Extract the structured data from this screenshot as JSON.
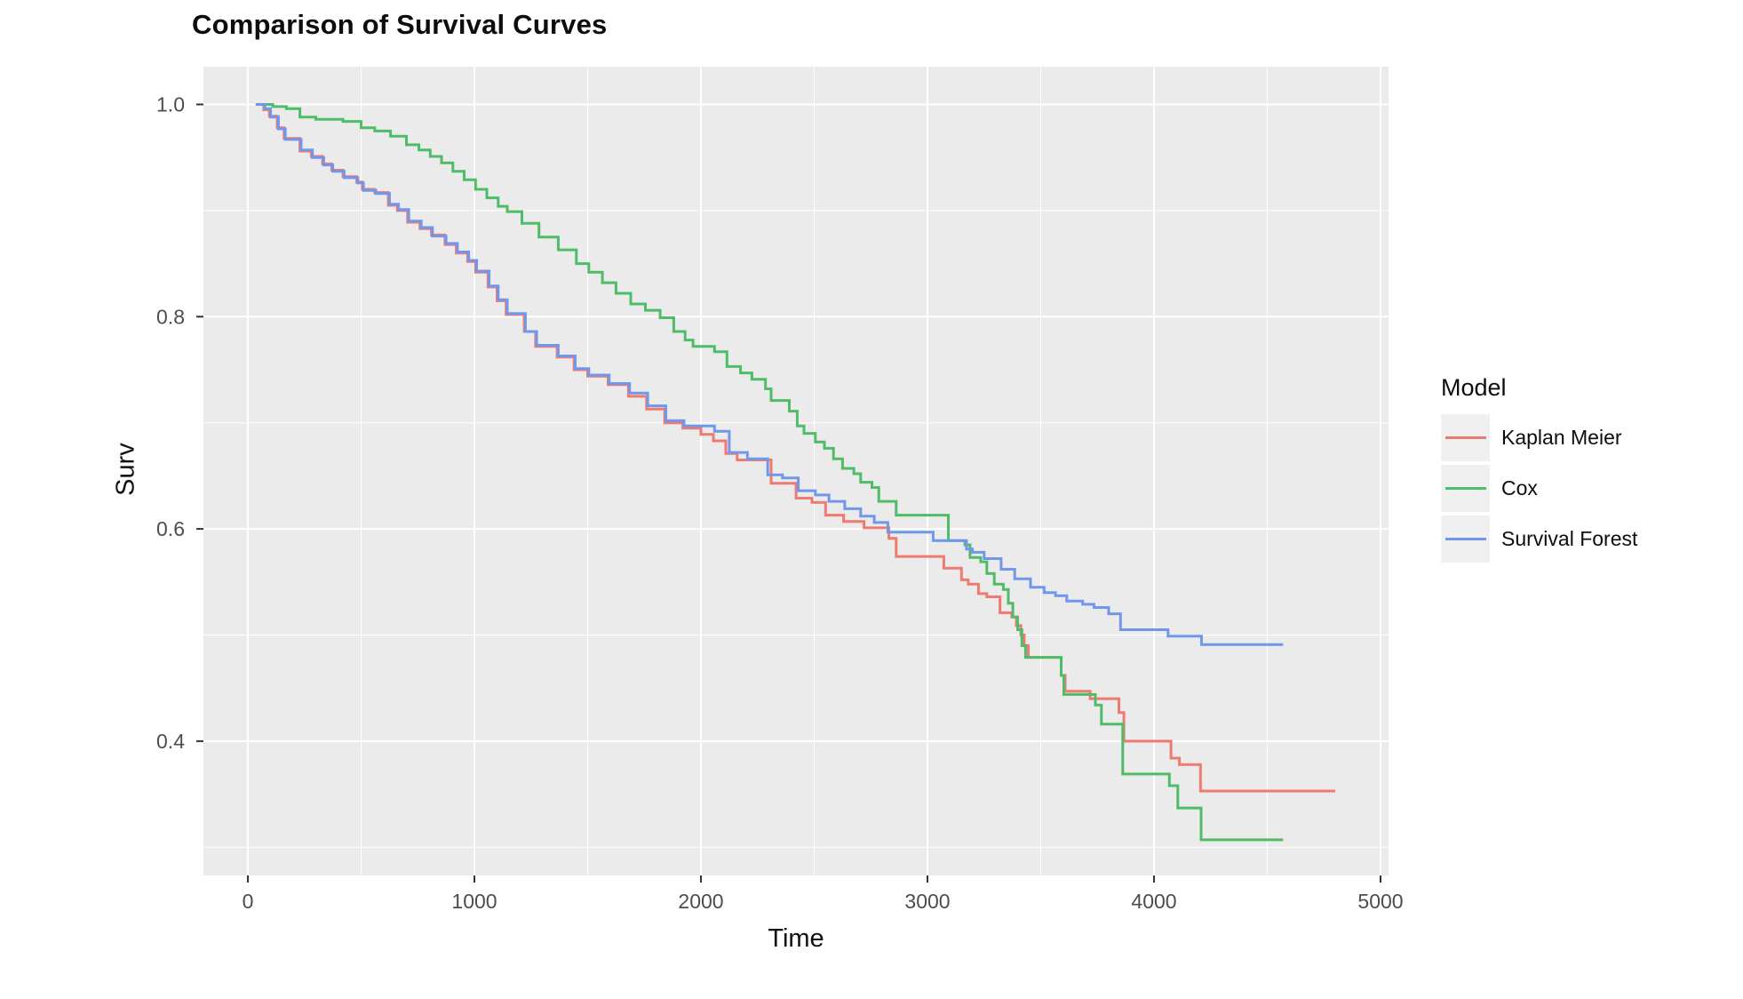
{
  "figure": {
    "title": "Comparison of Survival Curves"
  },
  "axes": {
    "x": {
      "title": "Time",
      "ticks": [
        {
          "value": 0,
          "label": "0"
        },
        {
          "value": 1000,
          "label": "1000"
        },
        {
          "value": 2000,
          "label": "2000"
        },
        {
          "value": 3000,
          "label": "3000"
        },
        {
          "value": 4000,
          "label": "4000"
        },
        {
          "value": 5000,
          "label": "5000"
        }
      ],
      "minor": [
        500,
        1500,
        2500,
        3500,
        4500
      ]
    },
    "y": {
      "title": "Surv",
      "ticks": [
        {
          "value": 1.0,
          "label": "1.0"
        },
        {
          "value": 0.8,
          "label": "0.8"
        },
        {
          "value": 0.6,
          "label": "0.6"
        },
        {
          "value": 0.4,
          "label": "0.4"
        }
      ],
      "minor": [
        0.9,
        0.7,
        0.5,
        0.3
      ]
    }
  },
  "legend": {
    "title": "Model",
    "entries": [
      {
        "label": "Kaplan Meier",
        "color": "#EE7A70"
      },
      {
        "label": "Cox",
        "color": "#4FBC68"
      },
      {
        "label": "Survival Forest",
        "color": "#7097EB"
      }
    ]
  },
  "style": {
    "panel_bg": "#EBEBEB",
    "grid_color": "#FFFFFF",
    "tick_mark_color": "#333333",
    "tick_label_color": "#4D4D4D",
    "legend_key_bg": "#F0F0F0"
  },
  "chart_data": {
    "type": "line",
    "step": true,
    "title": "Comparison of Survival Curves",
    "xlabel": "Time",
    "ylabel": "Surv",
    "xlim": [
      -200,
      5040
    ],
    "ylim": [
      0.27,
      1.035
    ],
    "x_major_gridlines": [
      0,
      1000,
      2000,
      3000,
      4000,
      5000
    ],
    "y_major_gridlines": [
      0.4,
      0.6,
      0.8,
      1.0
    ],
    "grid": "white on gray panel",
    "legend_position": "right",
    "series": [
      {
        "name": "Kaplan Meier",
        "color": "#EE7A70",
        "points": [
          [
            35,
            1.0
          ],
          [
            70,
            0.995
          ],
          [
            95,
            0.989
          ],
          [
            130,
            0.978
          ],
          [
            160,
            0.968
          ],
          [
            230,
            0.956
          ],
          [
            280,
            0.951
          ],
          [
            330,
            0.944
          ],
          [
            370,
            0.938
          ],
          [
            420,
            0.932
          ],
          [
            480,
            0.927
          ],
          [
            505,
            0.92
          ],
          [
            560,
            0.917
          ],
          [
            620,
            0.905
          ],
          [
            660,
            0.9
          ],
          [
            705,
            0.889
          ],
          [
            760,
            0.883
          ],
          [
            810,
            0.877
          ],
          [
            870,
            0.868
          ],
          [
            920,
            0.86
          ],
          [
            970,
            0.852
          ],
          [
            1005,
            0.842
          ],
          [
            1060,
            0.828
          ],
          [
            1100,
            0.815
          ],
          [
            1140,
            0.802
          ],
          [
            1220,
            0.786
          ],
          [
            1270,
            0.772
          ],
          [
            1365,
            0.762
          ],
          [
            1440,
            0.75
          ],
          [
            1500,
            0.744
          ],
          [
            1590,
            0.736
          ],
          [
            1680,
            0.725
          ],
          [
            1760,
            0.713
          ],
          [
            1840,
            0.7
          ],
          [
            1920,
            0.695
          ],
          [
            2000,
            0.689
          ],
          [
            2055,
            0.683
          ],
          [
            2110,
            0.671
          ],
          [
            2160,
            0.665
          ],
          [
            2310,
            0.643
          ],
          [
            2420,
            0.629
          ],
          [
            2490,
            0.625
          ],
          [
            2550,
            0.613
          ],
          [
            2630,
            0.607
          ],
          [
            2720,
            0.601
          ],
          [
            2830,
            0.591
          ],
          [
            2862,
            0.574
          ],
          [
            3072,
            0.563
          ],
          [
            3150,
            0.552
          ],
          [
            3180,
            0.548
          ],
          [
            3225,
            0.539
          ],
          [
            3262,
            0.536
          ],
          [
            3320,
            0.521
          ],
          [
            3372,
            0.517
          ],
          [
            3392,
            0.509
          ],
          [
            3412,
            0.5
          ],
          [
            3427,
            0.49
          ],
          [
            3445,
            0.479
          ],
          [
            3590,
            0.462
          ],
          [
            3608,
            0.447
          ],
          [
            3718,
            0.44
          ],
          [
            3845,
            0.427
          ],
          [
            3867,
            0.4
          ],
          [
            4075,
            0.384
          ],
          [
            4112,
            0.378
          ],
          [
            4205,
            0.353
          ],
          [
            4800,
            0.353
          ]
        ]
      },
      {
        "name": "Cox",
        "color": "#4FBC68",
        "points": [
          [
            35,
            1.0
          ],
          [
            110,
            0.998
          ],
          [
            170,
            0.996
          ],
          [
            230,
            0.988
          ],
          [
            300,
            0.986
          ],
          [
            420,
            0.984
          ],
          [
            500,
            0.978
          ],
          [
            560,
            0.975
          ],
          [
            630,
            0.97
          ],
          [
            700,
            0.962
          ],
          [
            755,
            0.957
          ],
          [
            805,
            0.951
          ],
          [
            855,
            0.945
          ],
          [
            905,
            0.937
          ],
          [
            955,
            0.929
          ],
          [
            1005,
            0.92
          ],
          [
            1055,
            0.912
          ],
          [
            1105,
            0.904
          ],
          [
            1145,
            0.899
          ],
          [
            1210,
            0.888
          ],
          [
            1285,
            0.875
          ],
          [
            1370,
            0.863
          ],
          [
            1450,
            0.85
          ],
          [
            1505,
            0.842
          ],
          [
            1565,
            0.832
          ],
          [
            1625,
            0.822
          ],
          [
            1690,
            0.812
          ],
          [
            1755,
            0.806
          ],
          [
            1820,
            0.799
          ],
          [
            1880,
            0.786
          ],
          [
            1930,
            0.778
          ],
          [
            1965,
            0.772
          ],
          [
            2060,
            0.767
          ],
          [
            2115,
            0.753
          ],
          [
            2175,
            0.747
          ],
          [
            2225,
            0.741
          ],
          [
            2285,
            0.732
          ],
          [
            2310,
            0.721
          ],
          [
            2390,
            0.711
          ],
          [
            2425,
            0.697
          ],
          [
            2455,
            0.69
          ],
          [
            2505,
            0.682
          ],
          [
            2545,
            0.676
          ],
          [
            2585,
            0.666
          ],
          [
            2625,
            0.657
          ],
          [
            2675,
            0.652
          ],
          [
            2705,
            0.644
          ],
          [
            2755,
            0.639
          ],
          [
            2785,
            0.626
          ],
          [
            2862,
            0.613
          ],
          [
            3092,
            0.589
          ],
          [
            3165,
            0.585
          ],
          [
            3188,
            0.573
          ],
          [
            3235,
            0.569
          ],
          [
            3262,
            0.558
          ],
          [
            3295,
            0.548
          ],
          [
            3335,
            0.543
          ],
          [
            3357,
            0.53
          ],
          [
            3377,
            0.517
          ],
          [
            3398,
            0.505
          ],
          [
            3417,
            0.49
          ],
          [
            3433,
            0.479
          ],
          [
            3590,
            0.462
          ],
          [
            3602,
            0.444
          ],
          [
            3741,
            0.434
          ],
          [
            3768,
            0.416
          ],
          [
            3862,
            0.369
          ],
          [
            4068,
            0.358
          ],
          [
            4105,
            0.337
          ],
          [
            4208,
            0.307
          ],
          [
            4570,
            0.307
          ]
        ]
      },
      {
        "name": "Survival Forest",
        "color": "#7097EB",
        "points": [
          [
            35,
            1.0
          ],
          [
            75,
            0.996
          ],
          [
            100,
            0.988
          ],
          [
            135,
            0.977
          ],
          [
            165,
            0.967
          ],
          [
            235,
            0.957
          ],
          [
            285,
            0.95
          ],
          [
            335,
            0.943
          ],
          [
            375,
            0.937
          ],
          [
            425,
            0.931
          ],
          [
            485,
            0.926
          ],
          [
            510,
            0.919
          ],
          [
            565,
            0.916
          ],
          [
            625,
            0.906
          ],
          [
            665,
            0.901
          ],
          [
            710,
            0.89
          ],
          [
            765,
            0.884
          ],
          [
            815,
            0.876
          ],
          [
            875,
            0.869
          ],
          [
            925,
            0.861
          ],
          [
            975,
            0.853
          ],
          [
            1010,
            0.843
          ],
          [
            1065,
            0.829
          ],
          [
            1105,
            0.816
          ],
          [
            1145,
            0.803
          ],
          [
            1225,
            0.786
          ],
          [
            1275,
            0.773
          ],
          [
            1370,
            0.763
          ],
          [
            1445,
            0.751
          ],
          [
            1505,
            0.745
          ],
          [
            1595,
            0.737
          ],
          [
            1685,
            0.728
          ],
          [
            1765,
            0.716
          ],
          [
            1845,
            0.702
          ],
          [
            1925,
            0.697
          ],
          [
            2060,
            0.692
          ],
          [
            2125,
            0.672
          ],
          [
            2205,
            0.666
          ],
          [
            2295,
            0.651
          ],
          [
            2360,
            0.648
          ],
          [
            2430,
            0.636
          ],
          [
            2505,
            0.632
          ],
          [
            2565,
            0.626
          ],
          [
            2635,
            0.619
          ],
          [
            2705,
            0.612
          ],
          [
            2765,
            0.606
          ],
          [
            2825,
            0.597
          ],
          [
            3025,
            0.589
          ],
          [
            3172,
            0.581
          ],
          [
            3198,
            0.578
          ],
          [
            3250,
            0.572
          ],
          [
            3325,
            0.562
          ],
          [
            3385,
            0.553
          ],
          [
            3455,
            0.545
          ],
          [
            3515,
            0.54
          ],
          [
            3565,
            0.537
          ],
          [
            3615,
            0.532
          ],
          [
            3685,
            0.529
          ],
          [
            3735,
            0.526
          ],
          [
            3800,
            0.52
          ],
          [
            3852,
            0.505
          ],
          [
            4062,
            0.499
          ],
          [
            4210,
            0.491
          ],
          [
            4570,
            0.491
          ]
        ]
      }
    ]
  }
}
